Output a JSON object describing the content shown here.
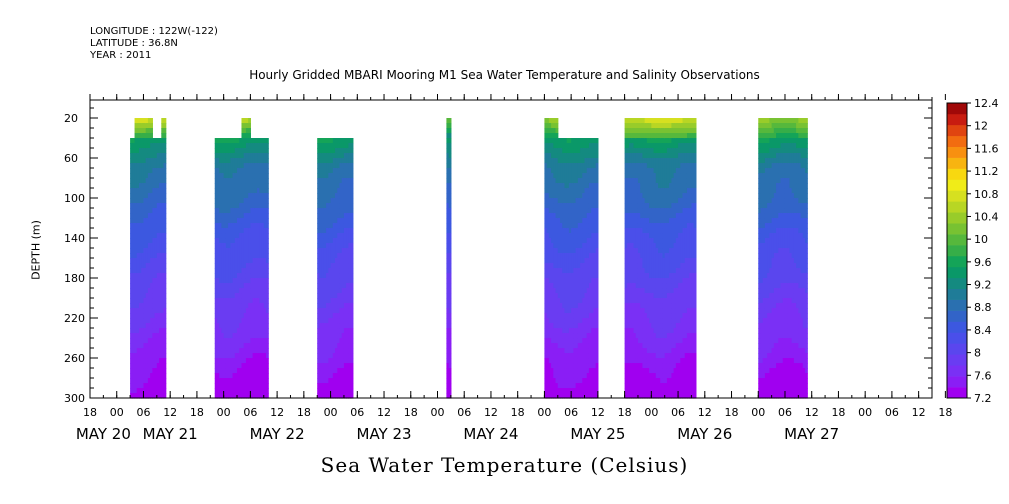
{
  "header": {
    "longitude": "LONGITUDE : 122W(-122)",
    "latitude": "LATITUDE : 36.8N",
    "year": "YEAR : 2011"
  },
  "chart_data": {
    "type": "heatmap",
    "title": "Hourly Gridded MBARI Mooring M1 Sea Water Temperature and Salinity Observations",
    "xlabel": "Sea Water Temperature (Celsius)",
    "ylabel": "DEPTH (m)",
    "y_axis": {
      "min": 300,
      "max": 2,
      "ticks": [
        20,
        60,
        100,
        140,
        180,
        220,
        260,
        300
      ],
      "inverted": true
    },
    "x_axis": {
      "unit": "hours since May 20 00:00",
      "min": -6,
      "max": 183,
      "hour_ticks": [
        "18",
        "00",
        "06",
        "12",
        "18",
        "00",
        "06",
        "12",
        "18",
        "00",
        "06",
        "12",
        "18",
        "00",
        "06",
        "12",
        "18",
        "00",
        "06",
        "12",
        "18",
        "00",
        "06",
        "12",
        "18",
        "00",
        "06",
        "12",
        "18",
        "00",
        "06",
        "12",
        "18"
      ],
      "day_labels": [
        {
          "label": "MAY 20",
          "at": -3
        },
        {
          "label": "MAY 21",
          "at": 12
        },
        {
          "label": "MAY 22",
          "at": 36
        },
        {
          "label": "MAY 23",
          "at": 60
        },
        {
          "label": "MAY 24",
          "at": 84
        },
        {
          "label": "MAY 25",
          "at": 108
        },
        {
          "label": "MAY 26",
          "at": 132
        },
        {
          "label": "MAY 27",
          "at": 156
        }
      ]
    },
    "colorbar": {
      "labels": [
        "12.4",
        "12",
        "11.6",
        "11.2",
        "10.8",
        "10.4",
        "10",
        "9.6",
        "9.2",
        "8.8",
        "8.4",
        "8",
        "7.6",
        "7.2"
      ],
      "levels": [
        7.2,
        7.4,
        7.6,
        7.8,
        8.0,
        8.2,
        8.4,
        8.6,
        8.8,
        9.0,
        9.2,
        9.4,
        9.6,
        9.8,
        10.0,
        10.2,
        10.4,
        10.6,
        10.8,
        11.0,
        11.2,
        11.4,
        11.6,
        11.8,
        12.0,
        12.2,
        12.4
      ],
      "colors": [
        "#a000f0",
        "#8a1ef5",
        "#7a30f5",
        "#6a3cf2",
        "#5a46ee",
        "#4a4fea",
        "#3c58e0",
        "#3264c8",
        "#2a70b0",
        "#1f7c98",
        "#148a80",
        "#0a9868",
        "#14a458",
        "#36ae48",
        "#56b83c",
        "#78c232",
        "#98cc2a",
        "#b8d624",
        "#d6e020",
        "#f0ec18",
        "#f8d810",
        "#f8b410",
        "#f89010",
        "#f26c10",
        "#e04410",
        "#c81c10",
        "#a00808"
      ]
    },
    "segments": [
      {
        "start": 3,
        "end": 11,
        "top_depth": 40,
        "surface": [
          {
            "start": 4,
            "end": 8,
            "depth": 20
          },
          {
            "start": 10,
            "end": 11,
            "depth": 20
          }
        ],
        "surface_temp": 10.8,
        "temp_40": 9.6
      },
      {
        "start": 22,
        "end": 34,
        "top_depth": 40,
        "surface": [
          {
            "start": 28,
            "end": 30,
            "depth": 20
          }
        ],
        "surface_temp": 10.6,
        "temp_40": 9.4
      },
      {
        "start": 45,
        "end": 53,
        "top_depth": 40,
        "surface": [],
        "surface_temp": 9.6,
        "temp_40": 9.4
      },
      {
        "start": 74,
        "end": 75,
        "top_depth": 20,
        "surface": [],
        "surface_temp": 10.2,
        "temp_40": 9.2
      },
      {
        "start": 96,
        "end": 108,
        "top_depth": 40,
        "surface": [
          {
            "start": 96,
            "end": 99,
            "depth": 20
          }
        ],
        "surface_temp": 10.4,
        "temp_40": 9.6
      },
      {
        "start": 114,
        "end": 130,
        "top_depth": 20,
        "surface": [],
        "surface_temp": 10.8,
        "temp_40": 9.8
      },
      {
        "start": 144,
        "end": 155,
        "top_depth": 20,
        "surface": [],
        "surface_temp": 10.4,
        "temp_40": 9.6
      }
    ],
    "gradient": [
      {
        "depth": 20,
        "temp": 10.6
      },
      {
        "depth": 40,
        "temp": 9.6
      },
      {
        "depth": 70,
        "temp": 9.0
      },
      {
        "depth": 100,
        "temp": 8.8
      },
      {
        "depth": 140,
        "temp": 8.4
      },
      {
        "depth": 180,
        "temp": 8.1
      },
      {
        "depth": 220,
        "temp": 7.8
      },
      {
        "depth": 260,
        "temp": 7.5
      },
      {
        "depth": 300,
        "temp": 7.2
      }
    ]
  }
}
